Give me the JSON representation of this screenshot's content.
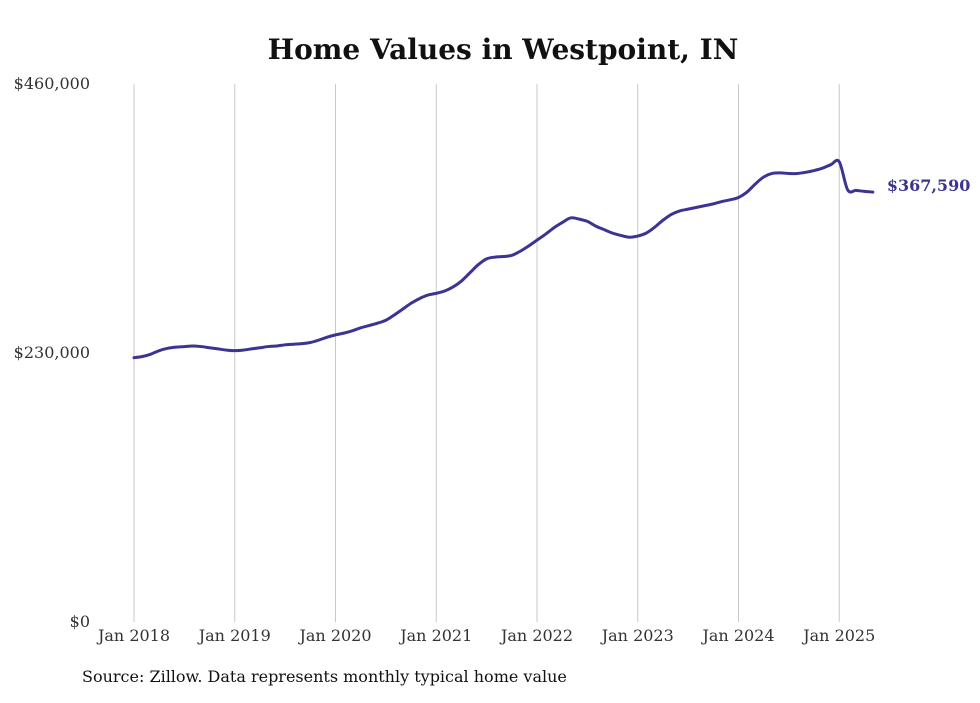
{
  "chart_data": {
    "type": "line",
    "title": "Home Values in Westpoint, IN",
    "xlabel": "",
    "ylabel": "",
    "ylim": [
      0,
      460000
    ],
    "y_ticks": [
      {
        "value": 0,
        "label": "$0"
      },
      {
        "value": 230000,
        "label": "$230,000"
      },
      {
        "value": 460000,
        "label": "$460,000"
      }
    ],
    "x_ticks": [
      {
        "value": 2018.0,
        "label": "Jan 2018"
      },
      {
        "value": 2019.0,
        "label": "Jan 2019"
      },
      {
        "value": 2020.0,
        "label": "Jan 2020"
      },
      {
        "value": 2021.0,
        "label": "Jan 2021"
      },
      {
        "value": 2022.0,
        "label": "Jan 2022"
      },
      {
        "value": 2023.0,
        "label": "Jan 2023"
      },
      {
        "value": 2024.0,
        "label": "Jan 2024"
      },
      {
        "value": 2025.0,
        "label": "Jan 2025"
      }
    ],
    "xlim": [
      2018.0,
      2025.4
    ],
    "grid": {
      "vertical": true,
      "horizontal": false
    },
    "line_color": "#3b3492",
    "series": [
      {
        "x": [
          2018.0,
          2018.0833,
          2018.1667,
          2018.25,
          2018.3333,
          2018.4167,
          2018.5,
          2018.5833,
          2018.6667,
          2018.75,
          2018.8333,
          2018.9167,
          2019.0,
          2019.0833,
          2019.1667,
          2019.25,
          2019.3333,
          2019.4167,
          2019.5,
          2019.5833,
          2019.6667,
          2019.75,
          2019.8333,
          2019.9167,
          2020.0,
          2020.0833,
          2020.1667,
          2020.25,
          2020.3333,
          2020.4167,
          2020.5,
          2020.5833,
          2020.6667,
          2020.75,
          2020.8333,
          2020.9167,
          2021.0,
          2021.0833,
          2021.1667,
          2021.25,
          2021.3333,
          2021.4167,
          2021.5,
          2021.5833,
          2021.6667,
          2021.75,
          2021.8333,
          2021.9167,
          2022.0,
          2022.0833,
          2022.1667,
          2022.25,
          2022.3333,
          2022.4167,
          2022.5,
          2022.5833,
          2022.6667,
          2022.75,
          2022.8333,
          2022.9167,
          2023.0,
          2023.0833,
          2023.1667,
          2023.25,
          2023.3333,
          2023.4167,
          2023.5,
          2023.5833,
          2023.6667,
          2023.75,
          2023.8333,
          2023.9167,
          2024.0,
          2024.0833,
          2024.1667,
          2024.25,
          2024.3333,
          2024.4167,
          2024.5,
          2024.5833,
          2024.6667,
          2024.75,
          2024.8333,
          2024.9167,
          2025.0,
          2025.0833,
          2025.1667,
          2025.25,
          2025.3333
        ],
        "values": [
          226000,
          227000,
          229000,
          232000,
          234000,
          235000,
          235500,
          236000,
          235500,
          234500,
          233500,
          232500,
          232000,
          232500,
          233500,
          234500,
          235500,
          236000,
          237000,
          237500,
          238000,
          239000,
          241000,
          243500,
          245500,
          247000,
          249000,
          251500,
          253500,
          255500,
          258000,
          262500,
          267500,
          272500,
          276500,
          279500,
          281000,
          283000,
          286500,
          291500,
          298500,
          305500,
          310500,
          312000,
          312500,
          313500,
          317000,
          321500,
          326500,
          331500,
          337000,
          341500,
          345500,
          344500,
          342500,
          338500,
          335500,
          332500,
          330500,
          329000,
          330000,
          332500,
          337500,
          343500,
          348500,
          351500,
          353000,
          354500,
          356000,
          357500,
          359500,
          361000,
          363000,
          367500,
          374500,
          380500,
          383500,
          384000,
          383500,
          383500,
          384500,
          386000,
          388000,
          391000,
          393500,
          369500,
          369000,
          368200,
          367590
        ],
        "end_label": "$367,590"
      }
    ]
  },
  "source_note": "Source: Zillow. Data represents monthly typical home value"
}
